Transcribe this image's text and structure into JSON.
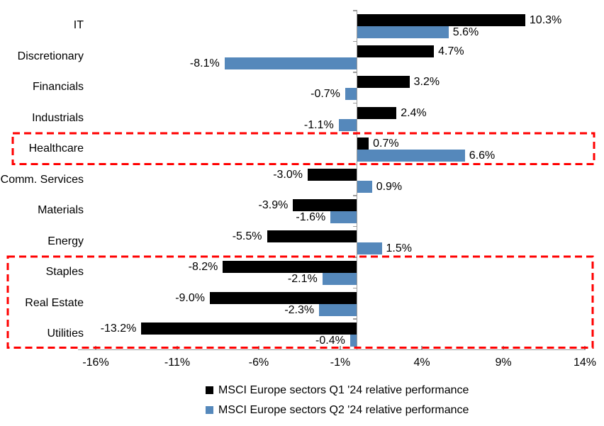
{
  "chart_data": {
    "type": "bar",
    "orientation": "horizontal",
    "title": "",
    "categories": [
      "IT",
      "Discretionary",
      "Financials",
      "Industrials",
      "Healthcare",
      "Comm. Services",
      "Materials",
      "Energy",
      "Staples",
      "Real Estate",
      "Utilities"
    ],
    "series": [
      {
        "name": "MSCI Europe sectors Q1 '24 relative performance",
        "color": "#000000",
        "values": [
          10.3,
          4.7,
          3.2,
          2.4,
          0.7,
          -3.0,
          -3.9,
          -5.5,
          -8.2,
          -9.0,
          -13.2
        ]
      },
      {
        "name": "MSCI Europe sectors Q2 '24 relative performance",
        "color": "#5588BB",
        "values": [
          5.6,
          -8.1,
          -0.7,
          -1.1,
          6.6,
          0.9,
          -1.6,
          1.5,
          -2.1,
          -2.3,
          -0.4
        ]
      }
    ],
    "value_label_format": "one-decimal-percent",
    "xlim": [
      -16,
      14
    ],
    "x_ticks": [
      "-16%",
      "-11%",
      "-6%",
      "-1%",
      "4%",
      "9%",
      "14%"
    ],
    "x_tick_values": [
      -16,
      -11,
      -6,
      -1,
      4,
      9,
      14
    ],
    "grid": false,
    "axis_color": "#9B9B9B",
    "legend_position": "bottom-center",
    "annotations": [
      {
        "type": "highlight-box",
        "style": "dashed",
        "color": "#FF0000",
        "rows": [
          "Healthcare"
        ]
      },
      {
        "type": "highlight-box",
        "style": "dashed",
        "color": "#FF0000",
        "rows": [
          "Staples",
          "Real Estate",
          "Utilities"
        ]
      }
    ]
  }
}
